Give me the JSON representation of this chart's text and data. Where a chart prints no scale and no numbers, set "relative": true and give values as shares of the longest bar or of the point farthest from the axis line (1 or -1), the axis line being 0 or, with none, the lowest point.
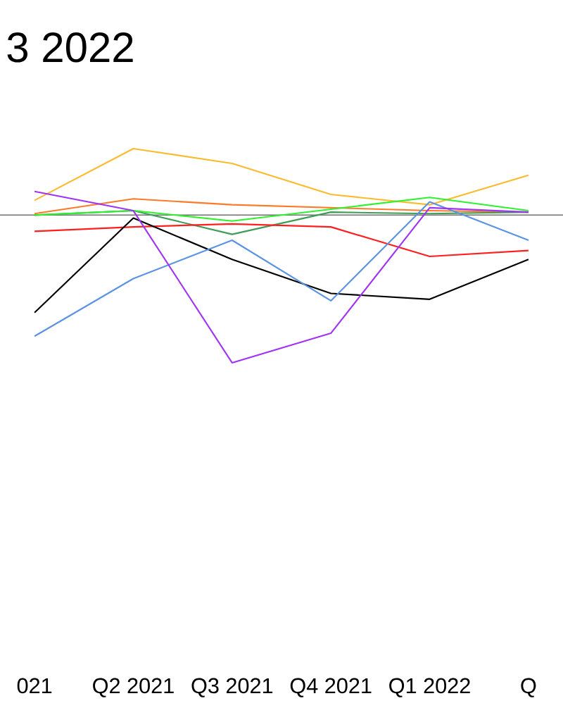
{
  "chart_data": {
    "type": "line",
    "title": "3 2022",
    "categories": [
      "021",
      "Q2 2021",
      "Q3 2021",
      "Q4 2021",
      "Q1 2022",
      "Q"
    ],
    "relative": true,
    "series": [
      {
        "color": "#f9bb2f",
        "values": [
          0.1,
          0.45,
          0.35,
          0.14,
          0.07,
          0.27
        ]
      },
      {
        "color": "#ff7a28",
        "values": [
          0.01,
          0.11,
          0.07,
          0.05,
          0.03,
          0.02
        ]
      },
      {
        "color": "#3e9d56",
        "values": [
          0.0,
          0.03,
          -0.13,
          0.02,
          0.01,
          0.02
        ]
      },
      {
        "color": "#2ef22e",
        "values": [
          0.0,
          0.03,
          -0.04,
          0.04,
          0.12,
          0.03
        ]
      },
      {
        "color": "#ff1f1f",
        "values": [
          -0.11,
          -0.08,
          -0.06,
          -0.08,
          -0.28,
          -0.24
        ]
      },
      {
        "color": "#000000",
        "values": [
          -0.66,
          -0.02,
          -0.3,
          -0.53,
          -0.57,
          -0.3
        ]
      },
      {
        "color": "#5b93e3",
        "values": [
          -0.82,
          -0.43,
          -0.17,
          -0.58,
          0.09,
          -0.17
        ]
      },
      {
        "color": "#a033f5",
        "values": [
          0.16,
          0.03,
          -1,
          -0.8,
          0.05,
          0.02
        ]
      }
    ]
  }
}
